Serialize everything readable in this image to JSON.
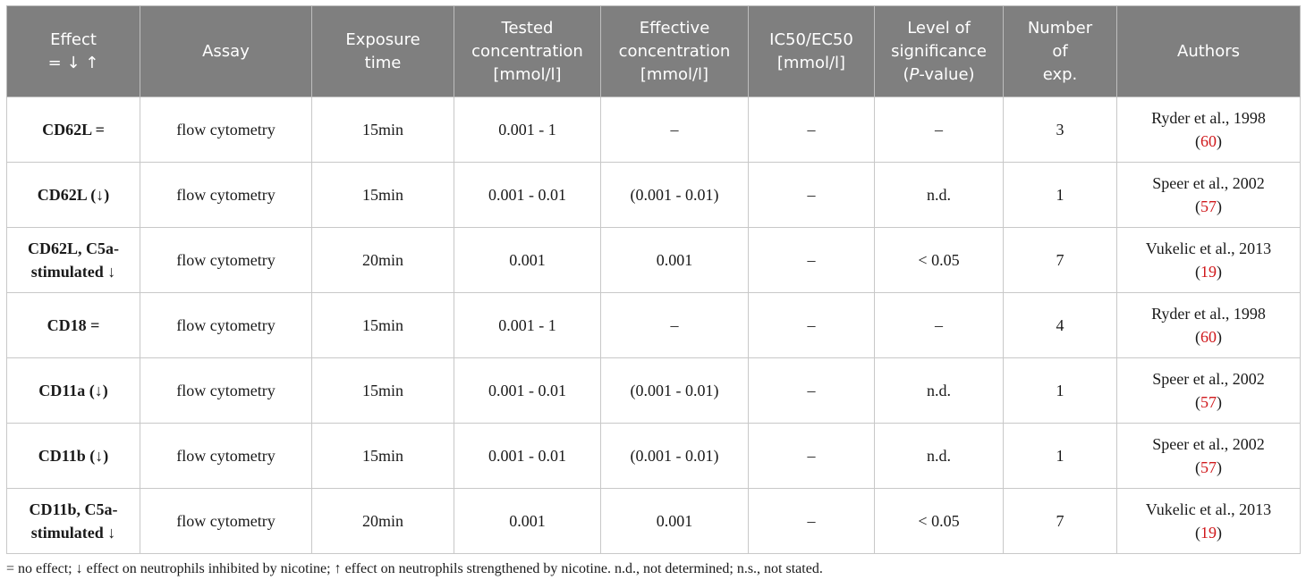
{
  "headers": [
    [
      "Effect",
      "= ↓ ↑"
    ],
    [
      "Assay"
    ],
    [
      "Exposure",
      "time"
    ],
    [
      "Tested",
      "concentration",
      "[mmol/l]"
    ],
    [
      "Effective",
      "concentration",
      "[mmol/l]"
    ],
    [
      "IC50/EC50",
      "[mmol/l]"
    ],
    [
      "Level of",
      "significance",
      "(P-value)"
    ],
    [
      "Number",
      "of",
      "exp."
    ],
    [
      "Authors"
    ]
  ],
  "rows": [
    {
      "effect": [
        "CD62L ="
      ],
      "assay": "flow cytometry",
      "time": "15min",
      "tested": "0.001 - 1",
      "effective": "–",
      "ic50": "–",
      "p": "–",
      "n": "3",
      "author": "Ryder et al., 1998",
      "ref": "60"
    },
    {
      "effect": [
        "CD62L (↓)"
      ],
      "assay": "flow cytometry",
      "time": "15min",
      "tested": "0.001 - 0.01",
      "effective": "(0.001 - 0.01)",
      "ic50": "–",
      "p": "n.d.",
      "n": "1",
      "author": "Speer et al., 2002",
      "ref": "57"
    },
    {
      "effect": [
        "CD62L, C5a-",
        "stimulated ↓"
      ],
      "assay": "flow cytometry",
      "time": "20min",
      "tested": "0.001",
      "effective": "0.001",
      "ic50": "–",
      "p": "< 0.05",
      "n": "7",
      "author": "Vukelic et al., 2013",
      "ref": "19"
    },
    {
      "effect": [
        "CD18 ="
      ],
      "assay": "flow cytometry",
      "time": "15min",
      "tested": "0.001 - 1",
      "effective": "–",
      "ic50": "–",
      "p": "–",
      "n": "4",
      "author": "Ryder et al., 1998",
      "ref": "60"
    },
    {
      "effect": [
        "CD11a (↓)"
      ],
      "assay": "flow cytometry",
      "time": "15min",
      "tested": "0.001 - 0.01",
      "effective": "(0.001 - 0.01)",
      "ic50": "–",
      "p": "n.d.",
      "n": "1",
      "author": "Speer et al., 2002",
      "ref": "57"
    },
    {
      "effect": [
        "CD11b (↓)"
      ],
      "assay": "flow cytometry",
      "time": "15min",
      "tested": "0.001 - 0.01",
      "effective": "(0.001 - 0.01)",
      "ic50": "–",
      "p": "n.d.",
      "n": "1",
      "author": "Speer et al., 2002",
      "ref": "57"
    },
    {
      "effect": [
        "CD11b, C5a-",
        "stimulated ↓"
      ],
      "assay": "flow cytometry",
      "time": "20min",
      "tested": "0.001",
      "effective": "0.001",
      "ic50": "–",
      "p": "< 0.05",
      "n": "7",
      "author": "Vukelic et al., 2013",
      "ref": "19"
    }
  ],
  "footnote": "= no effect; ↓ effect on neutrophils inhibited by nicotine; ↑ effect on neutrophils strengthened by nicotine. n.d., not determined; n.s., not stated."
}
